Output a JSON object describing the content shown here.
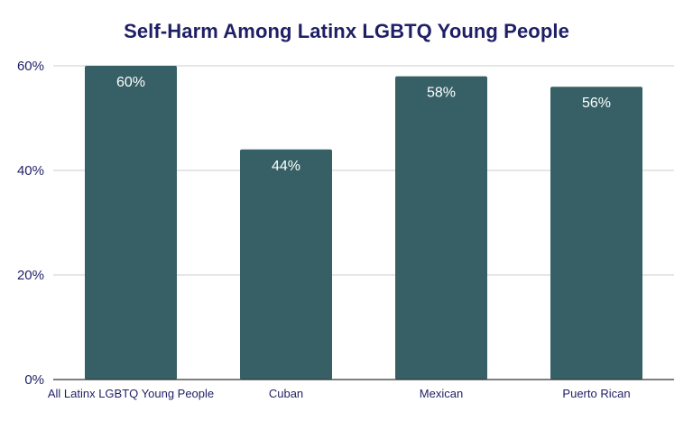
{
  "chart_data": {
    "type": "bar",
    "title": "Self-Harm Among Latinx LGBTQ Young People",
    "xlabel": "",
    "ylabel": "",
    "categories": [
      "All Latinx LGBTQ Young People",
      "Cuban",
      "Mexican",
      "Puerto Rican"
    ],
    "values": [
      60,
      44,
      58,
      56
    ],
    "data_labels": [
      "60%",
      "44%",
      "58%",
      "56%"
    ],
    "ylim": [
      0,
      60
    ],
    "yticks": [
      0,
      20,
      40,
      60
    ],
    "ytick_labels": [
      "0%",
      "20%",
      "40%",
      "60%"
    ],
    "grid": true,
    "legend": "none",
    "colors": {
      "bar": "#376066",
      "title": "#1f1f66",
      "text": "#1f1f66",
      "grid": "#cccccc",
      "axis": "#333333",
      "data_label": "#ffffff"
    }
  }
}
